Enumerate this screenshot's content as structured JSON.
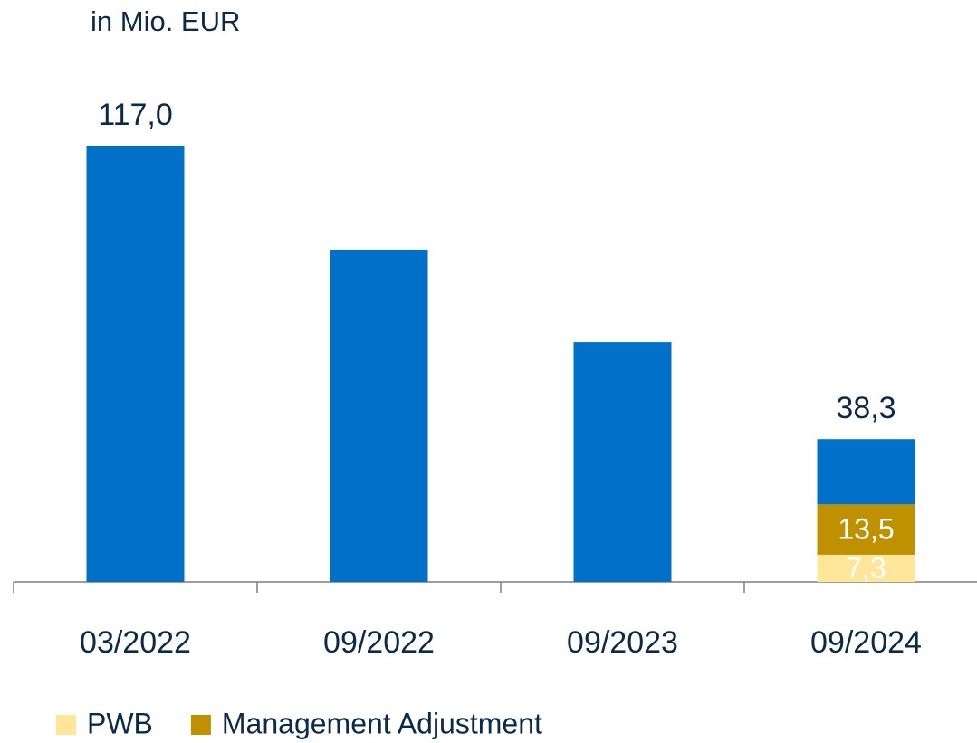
{
  "chart_data": {
    "type": "stacked_bar",
    "title": "in Mio. EUR",
    "categories": [
      "03/2022",
      "09/2022",
      "09/2023",
      "09/2024"
    ],
    "series": [
      {
        "name": "PWB",
        "color": "#ffe699",
        "values": [
          null,
          null,
          null,
          7.3
        ],
        "value_labels": [
          null,
          null,
          null,
          "7,3"
        ]
      },
      {
        "name": "Management Adjustment",
        "color": "#bf9000",
        "values": [
          null,
          null,
          null,
          13.5
        ],
        "value_labels": [
          null,
          null,
          null,
          "13,5"
        ]
      },
      {
        "color": "#0070c8",
        "values": [
          117.0,
          89.1,
          64.3,
          17.5
        ]
      }
    ],
    "totals": [
      117.0,
      null,
      null,
      38.3
    ],
    "total_labels": [
      "117,0",
      null,
      null,
      "38,3"
    ],
    "ylim": [
      0,
      117
    ]
  }
}
